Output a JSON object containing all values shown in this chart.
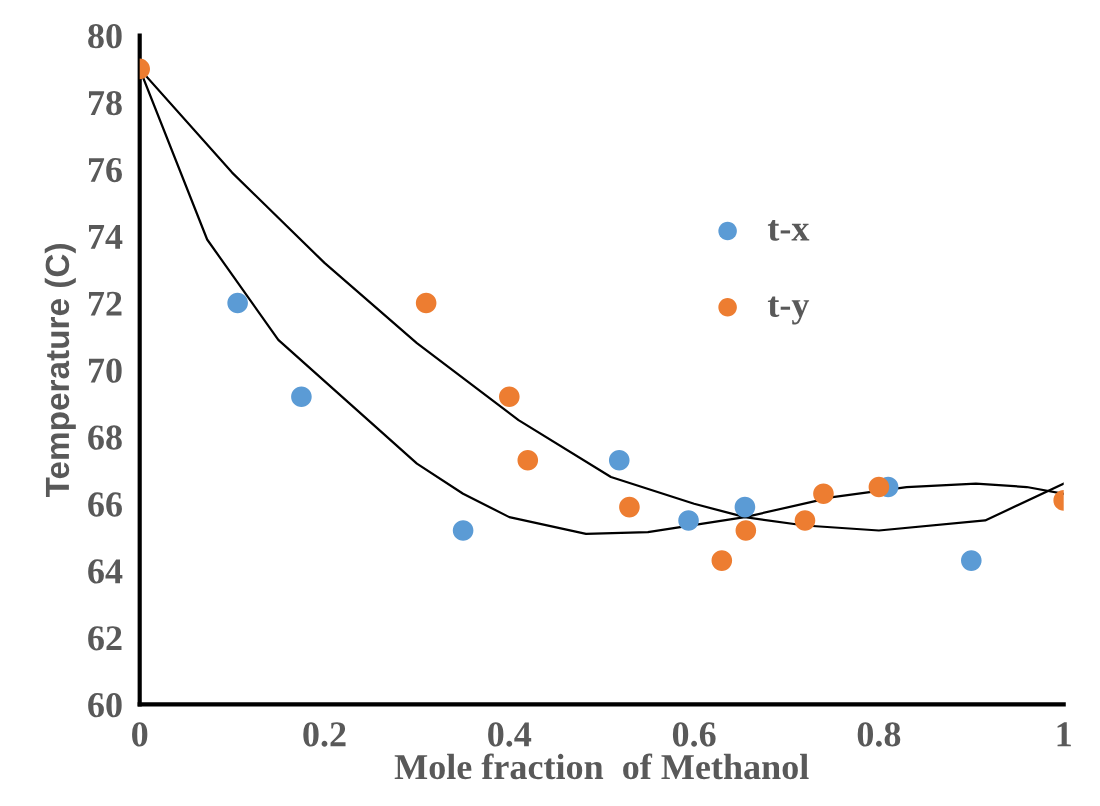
{
  "chart_data": {
    "type": "scatter",
    "xlabel": "Mole fraction  of Methanol",
    "ylabel": "Temperature (C)",
    "xlim": [
      0,
      1
    ],
    "ylim": [
      60,
      80
    ],
    "xticks": [
      0,
      0.2,
      0.4,
      0.6,
      0.8,
      1
    ],
    "yticks": [
      60,
      62,
      64,
      66,
      68,
      70,
      72,
      74,
      76,
      78,
      80
    ],
    "grid": false,
    "legend": "top right",
    "marker": "circle",
    "series": [
      {
        "name": "t-x",
        "color": "#5b9bd5",
        "x": [
          0.106,
          0.175,
          0.35,
          0.519,
          0.594,
          0.655,
          0.81,
          0.9
        ],
        "values": [
          72,
          69.2,
          65.2,
          67.3,
          65.5,
          65.9,
          66.5,
          64.3
        ]
      },
      {
        "name": "t-y",
        "color": "#ed7d31",
        "x": [
          0,
          0.31,
          0.4,
          0.42,
          0.53,
          0.63,
          0.656,
          0.72,
          0.74,
          0.8,
          1
        ],
        "values": [
          79,
          72,
          69.2,
          67.3,
          65.9,
          64.3,
          65.2,
          65.5,
          66.3,
          66.5,
          66.1
        ]
      },
      {
        "type": "line",
        "color": "#000000",
        "marker": "none",
        "x": [
          0,
          0.073,
          0.15,
          0.227,
          0.3,
          0.35,
          0.4,
          0.483,
          0.55,
          0.655,
          0.75,
          0.83,
          0.905,
          0.96,
          1
        ],
        "values": [
          79,
          73.9,
          70.9,
          69,
          67.2,
          66.3,
          65.6,
          65.1,
          65.15,
          65.6,
          66.2,
          66.5,
          66.6,
          66.5,
          66.3
        ]
      },
      {
        "type": "line",
        "color": "#000000",
        "marker": "none",
        "x": [
          0,
          0.1,
          0.2,
          0.3,
          0.41,
          0.51,
          0.6,
          0.655,
          0.72,
          0.8,
          0.915,
          1
        ],
        "values": [
          79,
          75.9,
          73.2,
          70.8,
          68.5,
          66.8,
          66,
          65.6,
          65.35,
          65.2,
          65.5,
          66.6
        ]
      }
    ]
  }
}
